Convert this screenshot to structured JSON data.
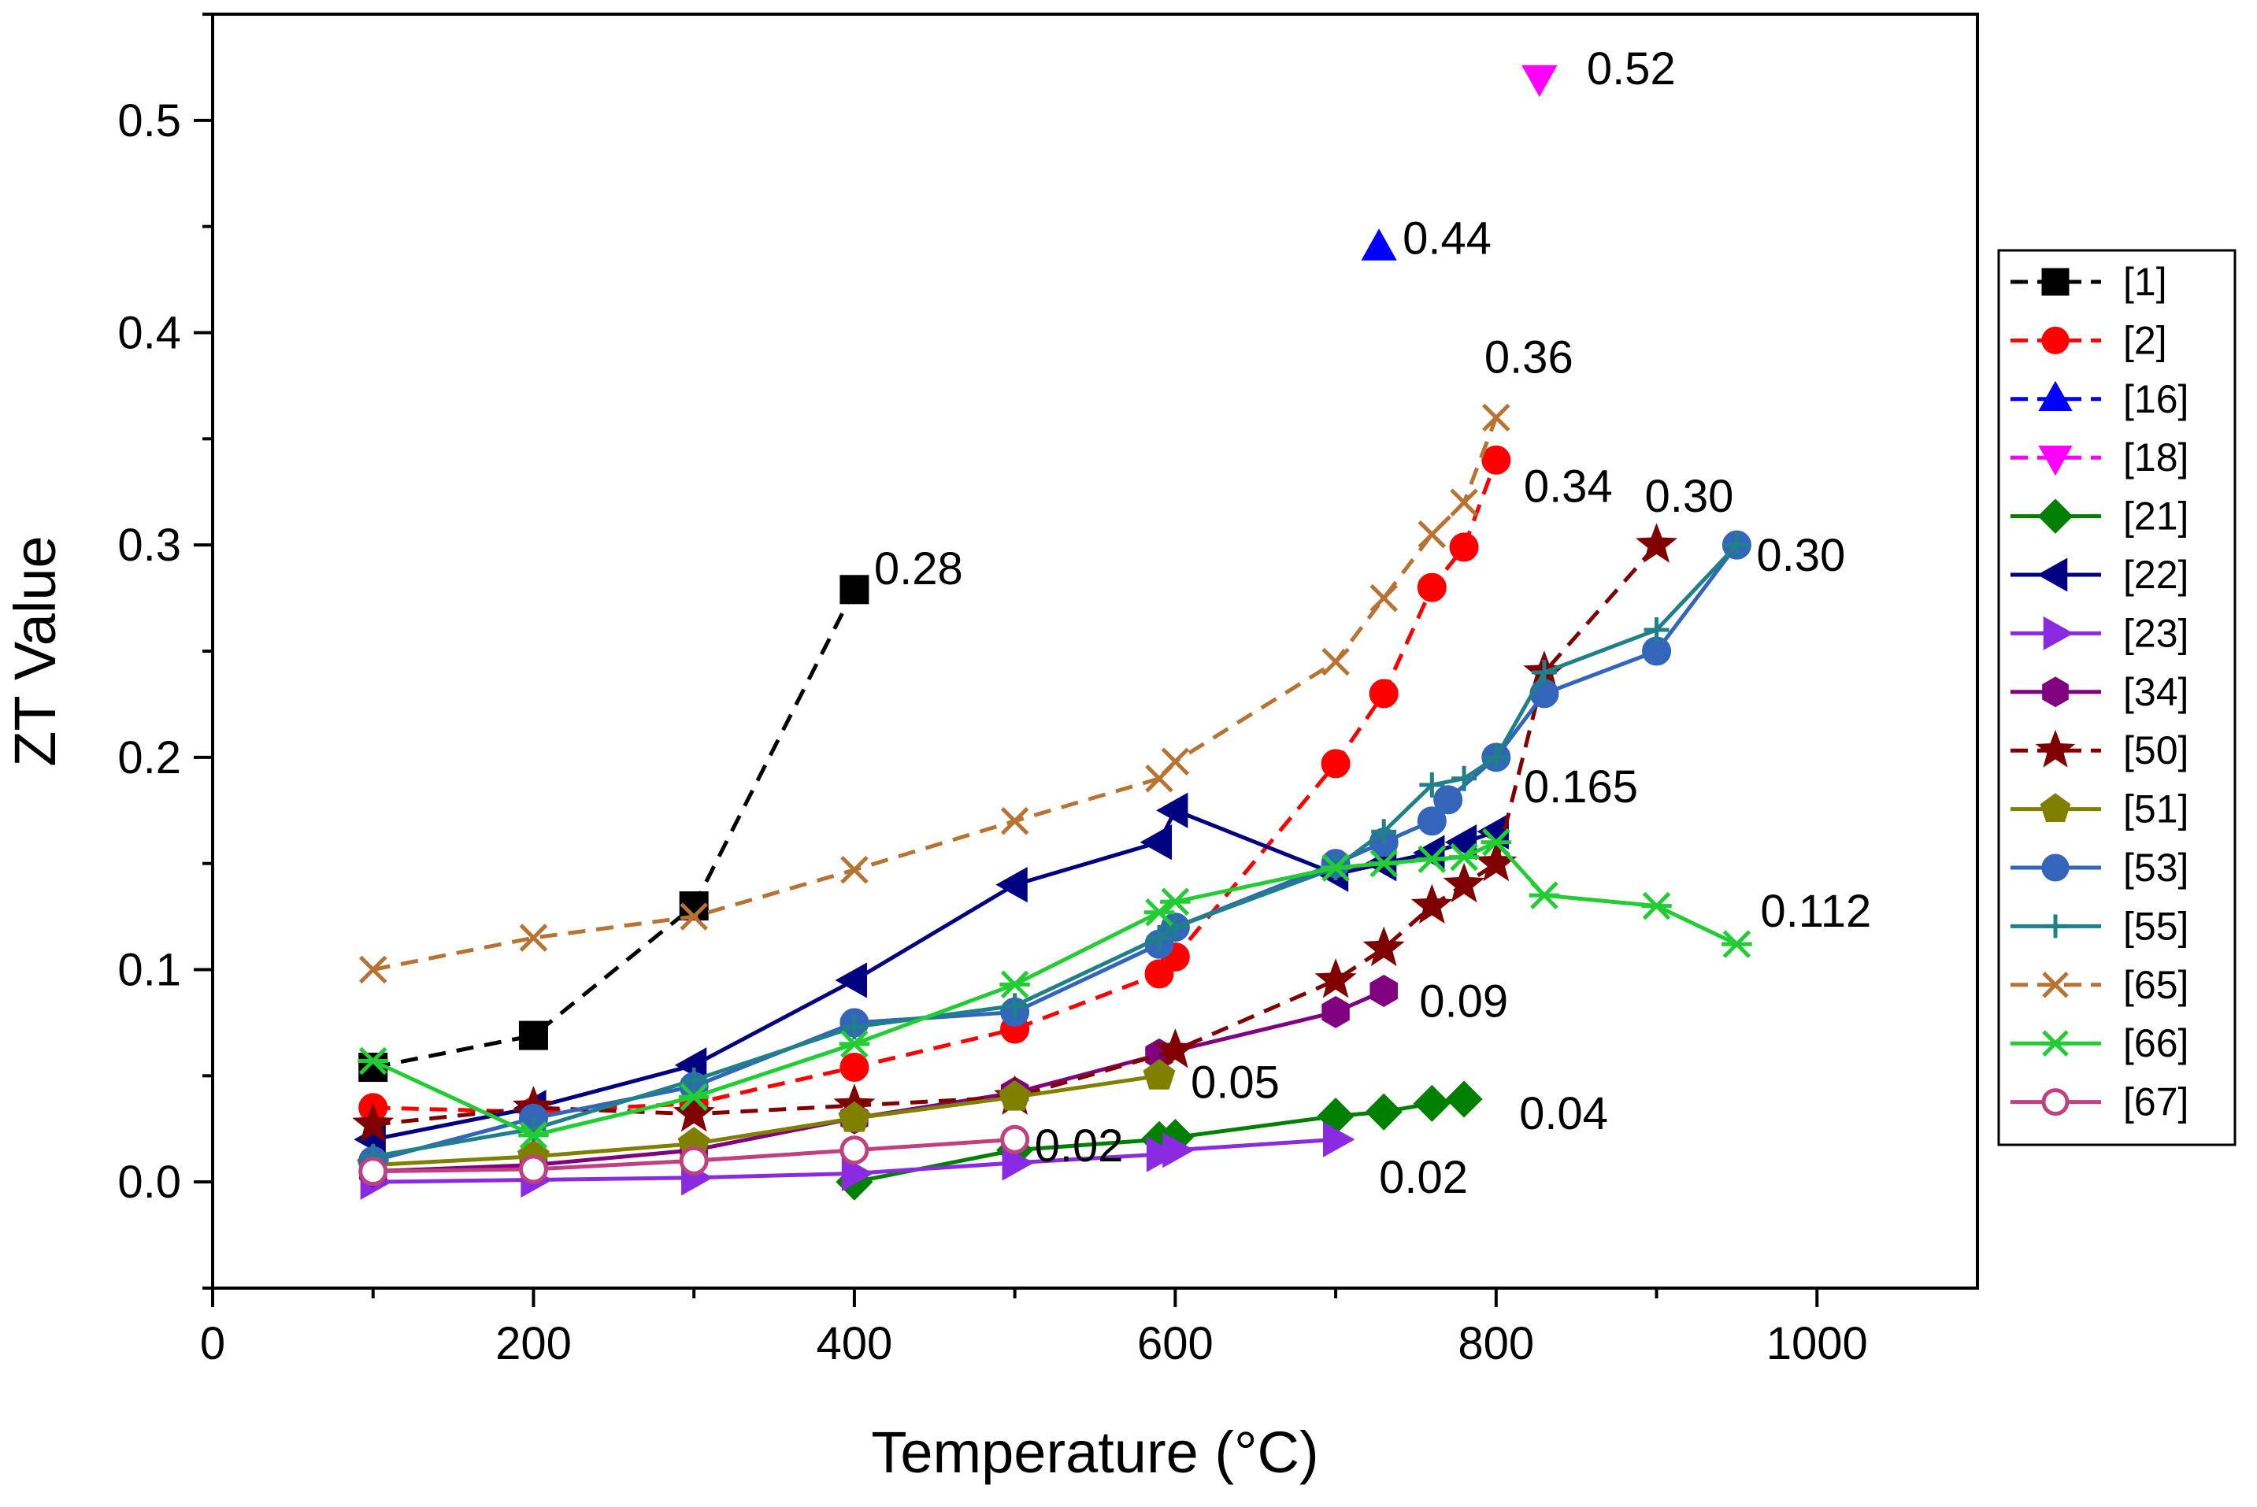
{
  "chart_data": {
    "type": "line",
    "title": "",
    "xlabel": "Temperature (°C)",
    "ylabel": "ZT Value",
    "xlim": [
      0,
      1100
    ],
    "ylim": [
      -0.05,
      0.55
    ],
    "xticks": [
      {
        "v": 0,
        "label": "0"
      },
      {
        "v": 200,
        "label": "200"
      },
      {
        "v": 400,
        "label": "400"
      },
      {
        "v": 600,
        "label": "600"
      },
      {
        "v": 800,
        "label": "800"
      },
      {
        "v": 1000,
        "label": "1000"
      }
    ],
    "yticks": [
      {
        "v": 0.0,
        "label": "0.0"
      },
      {
        "v": 0.1,
        "label": "0.1"
      },
      {
        "v": 0.2,
        "label": "0.2"
      },
      {
        "v": 0.3,
        "label": "0.3"
      },
      {
        "v": 0.4,
        "label": "0.4"
      },
      {
        "v": 0.5,
        "label": "0.5"
      }
    ],
    "grid": false,
    "legend_position": "right",
    "series": [
      {
        "name": "[1]",
        "color": "#000000",
        "dash": "dashed",
        "marker": "square",
        "filled": true,
        "x": [
          100,
          200,
          300,
          400
        ],
        "y": [
          0.054,
          0.069,
          0.13,
          0.279
        ]
      },
      {
        "name": "[2]",
        "color": "#ff0000",
        "dash": "dashed",
        "marker": "circle",
        "filled": true,
        "x": [
          100,
          200,
          300,
          400,
          500,
          590,
          600,
          700,
          730,
          760,
          780,
          800
        ],
        "y": [
          0.035,
          0.033,
          0.037,
          0.054,
          0.072,
          0.098,
          0.106,
          0.197,
          0.23,
          0.28,
          0.299,
          0.34
        ]
      },
      {
        "name": "[16]",
        "color": "#0000ff",
        "dash": "dashed",
        "marker": "triangle-up",
        "filled": true,
        "x": [
          727
        ],
        "y": [
          0.44
        ]
      },
      {
        "name": "[18]",
        "color": "#ff00ff",
        "dash": "dashed",
        "marker": "triangle-down",
        "filled": true,
        "x": [
          827
        ],
        "y": [
          0.52
        ]
      },
      {
        "name": "[21]",
        "color": "#008000",
        "dash": "solid",
        "marker": "diamond",
        "filled": true,
        "x": [
          400,
          500,
          590,
          600,
          700,
          730,
          760,
          780
        ],
        "y": [
          0.0,
          0.015,
          0.02,
          0.021,
          0.031,
          0.033,
          0.037,
          0.039
        ]
      },
      {
        "name": "[22]",
        "color": "#000080",
        "dash": "solid",
        "marker": "triangle-left",
        "filled": true,
        "x": [
          100,
          200,
          300,
          400,
          500,
          590,
          600,
          700,
          730,
          760,
          780,
          800
        ],
        "y": [
          0.02,
          0.035,
          0.055,
          0.095,
          0.14,
          0.16,
          0.175,
          0.145,
          0.15,
          0.155,
          0.16,
          0.165
        ]
      },
      {
        "name": "[23]",
        "color": "#8a2be2",
        "dash": "solid",
        "marker": "triangle-right",
        "filled": true,
        "x": [
          100,
          200,
          300,
          400,
          500,
          590,
          600,
          700
        ],
        "y": [
          0.0,
          0.001,
          0.002,
          0.004,
          0.009,
          0.013,
          0.015,
          0.02
        ]
      },
      {
        "name": "[34]",
        "color": "#800080",
        "dash": "solid",
        "marker": "hexagon",
        "filled": true,
        "x": [
          100,
          200,
          300,
          400,
          500,
          590,
          700,
          730
        ],
        "y": [
          0.005,
          0.008,
          0.015,
          0.03,
          0.042,
          0.06,
          0.08,
          0.09
        ]
      },
      {
        "name": "[50]",
        "color": "#800000",
        "dash": "dashed",
        "marker": "star",
        "filled": true,
        "x": [
          100,
          200,
          300,
          400,
          500,
          600,
          700,
          730,
          760,
          780,
          800,
          830,
          900
        ],
        "y": [
          0.027,
          0.035,
          0.032,
          0.036,
          0.04,
          0.062,
          0.095,
          0.11,
          0.13,
          0.14,
          0.15,
          0.24,
          0.3
        ]
      },
      {
        "name": "[51]",
        "color": "#808000",
        "dash": "solid",
        "marker": "pentagon",
        "filled": true,
        "x": [
          100,
          200,
          300,
          400,
          500,
          590
        ],
        "y": [
          0.008,
          0.012,
          0.018,
          0.03,
          0.04,
          0.05
        ]
      },
      {
        "name": "[53]",
        "color": "#3366bb",
        "dash": "solid",
        "marker": "circle",
        "filled": true,
        "x": [
          100,
          200,
          300,
          400,
          500,
          590,
          600,
          700,
          730,
          760,
          770,
          800,
          830,
          900,
          950
        ],
        "y": [
          0.01,
          0.03,
          0.045,
          0.075,
          0.08,
          0.112,
          0.12,
          0.15,
          0.16,
          0.17,
          0.18,
          0.2,
          0.23,
          0.25,
          0.3
        ]
      },
      {
        "name": "[55]",
        "color": "#20808a",
        "dash": "solid",
        "marker": "plus",
        "filled": false,
        "x": [
          100,
          200,
          300,
          400,
          500,
          590,
          600,
          700,
          730,
          760,
          780,
          800,
          830,
          900,
          950
        ],
        "y": [
          0.012,
          0.025,
          0.048,
          0.073,
          0.083,
          0.115,
          0.12,
          0.148,
          0.165,
          0.187,
          0.19,
          0.2,
          0.24,
          0.26,
          0.3
        ]
      },
      {
        "name": "[65]",
        "color": "#b87333",
        "dash": "dashed",
        "marker": "x",
        "filled": false,
        "x": [
          100,
          200,
          300,
          400,
          500,
          590,
          600,
          700,
          730,
          760,
          780,
          800
        ],
        "y": [
          0.1,
          0.115,
          0.125,
          0.147,
          0.17,
          0.19,
          0.198,
          0.245,
          0.275,
          0.305,
          0.32,
          0.36
        ]
      },
      {
        "name": "[66]",
        "color": "#22cc33",
        "dash": "solid",
        "marker": "asterisk",
        "filled": false,
        "x": [
          100,
          200,
          300,
          400,
          500,
          590,
          600,
          700,
          730,
          760,
          780,
          800,
          830,
          900,
          950
        ],
        "y": [
          0.057,
          0.022,
          0.04,
          0.065,
          0.093,
          0.127,
          0.132,
          0.148,
          0.15,
          0.152,
          0.153,
          0.16,
          0.135,
          0.13,
          0.112
        ]
      },
      {
        "name": "[67]",
        "color": "#c04080",
        "dash": "solid",
        "marker": "circle",
        "filled": false,
        "x": [
          100,
          200,
          300,
          400,
          500
        ],
        "y": [
          0.005,
          0.006,
          0.01,
          0.015,
          0.02
        ]
      }
    ],
    "annotations": [
      {
        "text": "0.28",
        "x": 400,
        "y": 0.279
      },
      {
        "text": "0.52",
        "x": 827,
        "y": 0.52
      },
      {
        "text": "0.44",
        "x": 727,
        "y": 0.44
      },
      {
        "text": "0.36",
        "x": 800,
        "y": 0.36
      },
      {
        "text": "0.34",
        "x": 800,
        "y": 0.34
      },
      {
        "text": "0.30",
        "x": 900,
        "y": 0.3
      },
      {
        "text": "0.30",
        "x": 950,
        "y": 0.3
      },
      {
        "text": "0.165",
        "x": 800,
        "y": 0.165
      },
      {
        "text": "0.112",
        "x": 950,
        "y": 0.112
      },
      {
        "text": "0.09",
        "x": 730,
        "y": 0.09
      },
      {
        "text": "0.05",
        "x": 590,
        "y": 0.05
      },
      {
        "text": "0.02",
        "x": 500,
        "y": 0.02
      },
      {
        "text": "0.04",
        "x": 780,
        "y": 0.039
      },
      {
        "text": "0.02",
        "x": 700,
        "y": 0.02
      }
    ]
  }
}
